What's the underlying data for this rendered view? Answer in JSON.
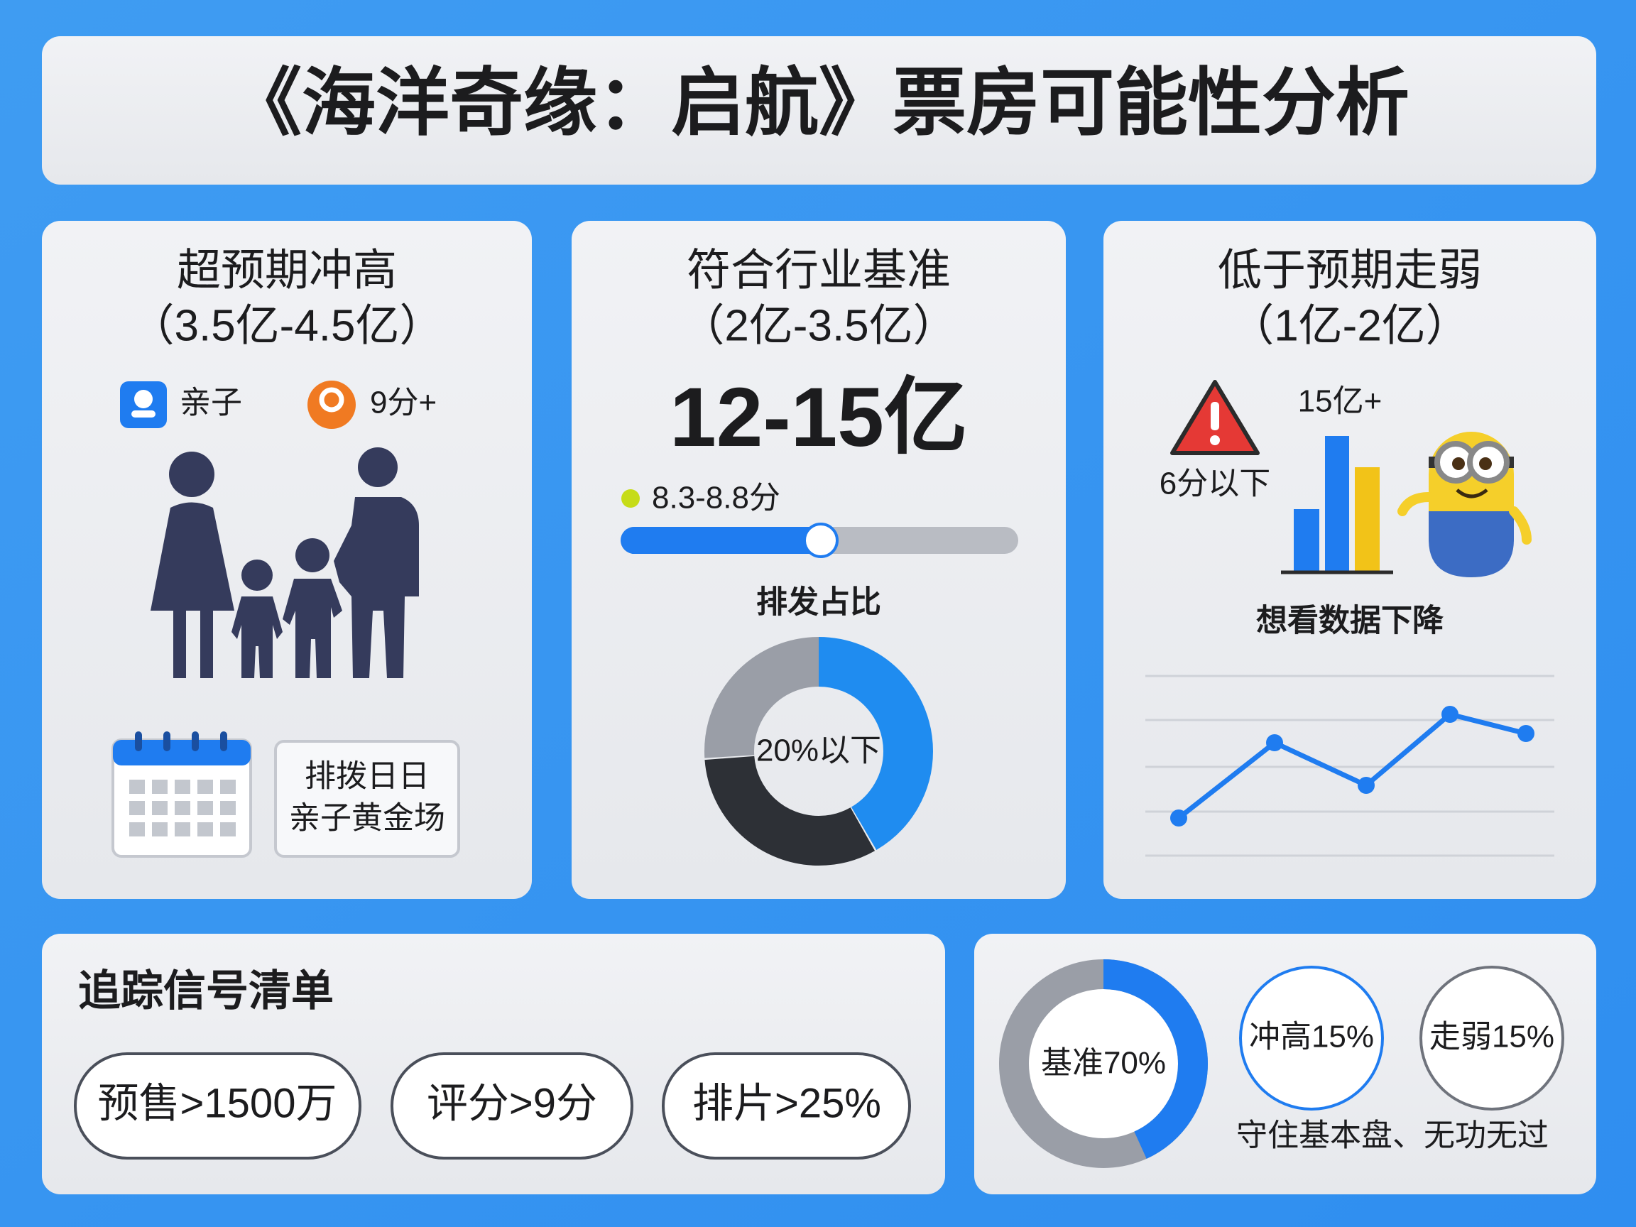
{
  "title": "《海洋奇缘：启航》票房可能性分析",
  "scenarios": [
    {
      "title": "超预期冲高",
      "range": "（3.5亿-4.5亿）",
      "tags": [
        "亲子",
        "9分+"
      ],
      "note": [
        "排拨日日",
        "亲子黄金场"
      ]
    },
    {
      "title": "符合行业基准",
      "range": "（2亿-3.5亿）",
      "headline": "12-15亿",
      "score": "8.3-8.8分",
      "share_label": "排发占比",
      "share_center": "20%以下"
    },
    {
      "title": "低于预期走弱",
      "range": "（1亿-2亿）",
      "warning": "6分以下",
      "bar_label": "15亿+",
      "trend_label": "想看数据下降"
    }
  ],
  "signals": {
    "title": "追踪信号清单",
    "items": [
      "预售>1500万",
      "评分>9分",
      "排片>25%"
    ]
  },
  "summary": {
    "center": "基准70%",
    "circles": [
      "冲高15%",
      "走弱15%"
    ],
    "note": "守住基本盘、无功无过"
  }
}
